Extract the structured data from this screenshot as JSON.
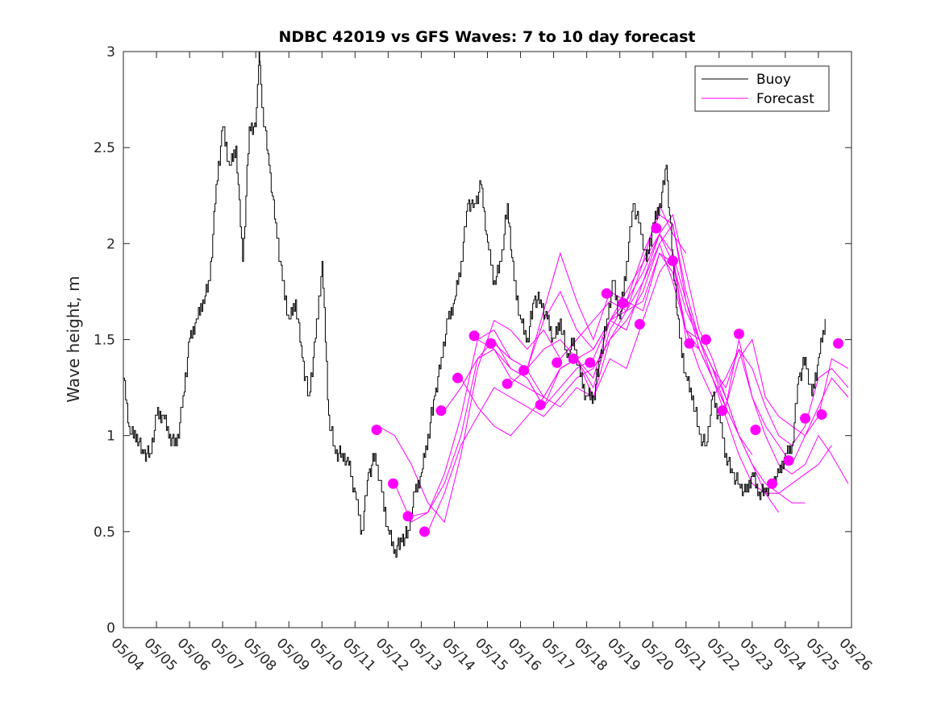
{
  "chart_data": {
    "type": "line",
    "title": "NDBC 42019 vs GFS Waves: 7 to 10 day forecast",
    "ylabel": "Wave height, m",
    "xlabel": "",
    "ylim": [
      0,
      3
    ],
    "yticks": [
      "0",
      "0.5",
      "1",
      "1.5",
      "2",
      "2.5",
      "3"
    ],
    "xlim": [
      4,
      26
    ],
    "xticks": [
      "05/04",
      "05/05",
      "05/06",
      "05/07",
      "05/08",
      "05/09",
      "05/10",
      "05/11",
      "05/12",
      "05/13",
      "05/14",
      "05/15",
      "05/16",
      "05/17",
      "05/18",
      "05/19",
      "05/20",
      "05/21",
      "05/22",
      "05/23",
      "05/24",
      "05/25",
      "05/26"
    ],
    "legend": {
      "position": "top-right",
      "entries": [
        "Buoy",
        "Forecast"
      ]
    },
    "colors": {
      "buoy": "#000000",
      "forecast": "#ff00ff"
    },
    "buoy": {
      "x": [
        4.0,
        4.2,
        4.4,
        4.6,
        4.8,
        5.0,
        5.2,
        5.4,
        5.6,
        5.8,
        6.0,
        6.2,
        6.4,
        6.6,
        6.8,
        7.0,
        7.2,
        7.4,
        7.6,
        7.8,
        8.0,
        8.1,
        8.2,
        8.4,
        8.6,
        8.8,
        9.0,
        9.2,
        9.4,
        9.6,
        9.8,
        10.0,
        10.2,
        10.4,
        10.6,
        10.8,
        11.0,
        11.2,
        11.4,
        11.6,
        11.8,
        12.0,
        12.2,
        12.4,
        12.6,
        12.8,
        13.0,
        13.2,
        13.4,
        13.6,
        13.8,
        14.0,
        14.2,
        14.4,
        14.6,
        14.8,
        15.0,
        15.2,
        15.4,
        15.6,
        15.8,
        16.0,
        16.2,
        16.4,
        16.6,
        16.8,
        17.0,
        17.2,
        17.4,
        17.6,
        17.8,
        18.0,
        18.2,
        18.4,
        18.6,
        18.8,
        19.0,
        19.2,
        19.4,
        19.6,
        19.8,
        20.0,
        20.2,
        20.4,
        20.6,
        20.8,
        21.0,
        21.2,
        21.4,
        21.6,
        21.8,
        22.0,
        22.2,
        22.4,
        22.6,
        22.8,
        23.0,
        23.2,
        23.4,
        23.6,
        23.8,
        24.0,
        24.2,
        24.4,
        24.6,
        24.8,
        25.0,
        25.2
      ],
      "y": [
        1.3,
        1.0,
        1.0,
        0.9,
        0.9,
        1.1,
        1.1,
        1.0,
        0.95,
        1.2,
        1.5,
        1.6,
        1.7,
        1.8,
        2.3,
        2.6,
        2.4,
        2.5,
        1.9,
        2.6,
        2.6,
        3.0,
        2.7,
        2.4,
        2.1,
        1.8,
        1.6,
        1.7,
        1.4,
        1.2,
        1.5,
        1.9,
        1.1,
        0.9,
        0.9,
        0.85,
        0.7,
        0.5,
        0.8,
        0.9,
        0.7,
        0.5,
        0.4,
        0.45,
        0.5,
        0.7,
        0.8,
        1.0,
        1.2,
        1.4,
        1.6,
        1.7,
        1.9,
        2.2,
        2.2,
        2.3,
        2.0,
        1.8,
        1.9,
        2.2,
        1.8,
        1.6,
        1.5,
        1.7,
        1.7,
        1.6,
        1.5,
        1.6,
        1.4,
        1.5,
        1.3,
        1.2,
        1.2,
        1.4,
        1.6,
        1.8,
        1.6,
        1.9,
        2.2,
        2.1,
        1.9,
        2.1,
        2.2,
        2.4,
        1.9,
        1.5,
        1.3,
        1.2,
        1.0,
        0.95,
        1.2,
        1.1,
        0.9,
        0.8,
        0.75,
        0.7,
        0.8,
        0.7,
        0.7,
        0.75,
        0.8,
        0.9,
        0.95,
        1.3,
        1.4,
        1.2,
        1.4,
        1.6
      ]
    },
    "forecast_points": {
      "x": [
        11.65,
        12.15,
        12.6,
        13.1,
        13.6,
        14.1,
        14.6,
        15.1,
        15.6,
        16.1,
        16.6,
        17.1,
        17.6,
        18.1,
        18.6,
        19.1,
        19.6,
        20.1,
        20.6,
        21.1,
        21.6,
        22.1,
        22.6,
        23.1,
        23.6,
        24.1,
        24.6,
        25.1,
        25.6
      ],
      "y": [
        1.03,
        0.75,
        0.58,
        0.5,
        1.13,
        1.3,
        1.52,
        1.48,
        1.27,
        1.34,
        1.16,
        1.38,
        1.4,
        1.38,
        1.74,
        1.69,
        1.58,
        2.08,
        1.91,
        1.48,
        1.5,
        1.13,
        1.53,
        1.03,
        0.75,
        0.87,
        1.09,
        1.11,
        1.48
      ]
    },
    "forecast_series": [
      {
        "x": [
          11.7,
          12.2,
          12.7,
          13.2,
          13.7,
          14.2,
          14.7,
          15.2,
          15.7,
          16.2,
          16.7,
          17.2,
          17.7,
          18.2,
          18.7,
          19.2,
          19.7,
          20.2,
          20.6,
          21.0
        ],
        "y": [
          1.05,
          1.0,
          0.85,
          0.65,
          0.55,
          0.9,
          1.35,
          1.6,
          1.55,
          1.45,
          1.55,
          1.4,
          1.5,
          1.6,
          1.7,
          1.65,
          1.9,
          2.2,
          2.05,
          1.95
        ]
      },
      {
        "x": [
          12.2,
          12.7,
          13.2,
          13.7,
          14.2,
          14.7,
          15.2,
          15.7,
          16.2,
          16.7,
          17.2,
          17.7,
          18.2,
          18.7,
          19.2,
          19.7,
          20.2,
          20.6,
          21.0,
          21.4,
          21.8,
          22.2
        ],
        "y": [
          0.75,
          0.55,
          0.6,
          0.8,
          1.1,
          1.5,
          1.45,
          1.35,
          1.3,
          1.15,
          1.25,
          1.35,
          1.4,
          1.6,
          1.75,
          1.9,
          2.05,
          1.9,
          1.65,
          1.5,
          1.35,
          1.15
        ]
      },
      {
        "x": [
          12.7,
          13.2,
          13.7,
          14.2,
          14.7,
          15.2,
          15.7,
          16.2,
          16.7,
          17.2,
          17.7,
          18.2,
          18.7,
          19.2,
          19.7,
          20.2,
          20.6,
          21.0,
          21.4,
          21.8,
          22.2,
          22.6,
          23.0
        ],
        "y": [
          0.58,
          0.6,
          0.75,
          1.0,
          1.4,
          1.45,
          1.3,
          1.25,
          1.2,
          1.35,
          1.4,
          1.45,
          1.6,
          1.7,
          1.95,
          2.15,
          2.1,
          1.7,
          1.5,
          1.35,
          1.2,
          1.0,
          0.9
        ]
      },
      {
        "x": [
          13.2,
          13.7,
          14.2,
          14.7,
          15.2,
          15.7,
          16.2,
          16.7,
          17.2,
          17.7,
          18.2,
          18.7,
          19.2,
          19.7,
          20.2,
          20.6,
          21.0,
          21.4,
          21.8,
          22.2,
          22.6,
          23.0,
          23.4,
          23.8
        ],
        "y": [
          0.5,
          0.7,
          0.95,
          1.1,
          1.25,
          1.2,
          1.15,
          1.1,
          1.2,
          1.3,
          1.35,
          1.5,
          1.6,
          1.75,
          2.0,
          2.1,
          1.75,
          1.5,
          1.3,
          1.1,
          0.9,
          0.75,
          0.7,
          0.6
        ]
      },
      {
        "x": [
          13.7,
          14.2,
          14.7,
          15.2,
          15.7,
          16.2,
          16.7,
          17.2,
          17.7,
          18.2,
          18.7,
          19.2,
          19.7,
          20.2,
          20.6,
          21.0,
          21.4,
          21.8,
          22.2,
          22.6,
          23.0,
          23.4,
          23.8,
          24.2,
          24.6
        ],
        "y": [
          1.13,
          1.25,
          1.4,
          1.5,
          1.35,
          1.3,
          1.15,
          1.35,
          1.4,
          1.2,
          1.5,
          1.65,
          1.8,
          2.05,
          2.15,
          1.85,
          1.55,
          1.4,
          1.2,
          1.0,
          0.85,
          0.7,
          0.7,
          0.65,
          0.65
        ]
      },
      {
        "x": [
          14.2,
          14.7,
          15.2,
          15.7,
          16.2,
          16.7,
          17.2,
          17.7,
          18.2,
          18.7,
          19.2,
          19.7,
          20.2,
          20.6,
          21.0,
          21.4,
          21.8,
          22.2,
          22.6,
          23.0,
          23.4,
          23.8,
          24.2,
          24.6,
          25.0,
          25.4
        ],
        "y": [
          1.3,
          1.15,
          1.05,
          1.0,
          1.1,
          1.2,
          1.35,
          1.4,
          1.25,
          1.55,
          1.7,
          1.85,
          2.05,
          1.95,
          1.7,
          1.45,
          1.3,
          1.15,
          1.0,
          0.85,
          0.75,
          0.7,
          0.75,
          0.8,
          0.85,
          0.95
        ]
      },
      {
        "x": [
          14.7,
          15.2,
          15.7,
          16.2,
          16.7,
          17.2,
          17.7,
          18.2,
          18.7,
          19.2,
          19.7,
          20.2,
          20.6,
          21.0,
          21.4,
          21.8,
          22.2,
          22.6,
          23.0,
          23.4,
          23.8,
          24.2,
          24.6,
          25.0,
          25.4,
          25.9
        ],
        "y": [
          1.5,
          1.55,
          1.4,
          1.35,
          1.45,
          1.5,
          1.4,
          1.3,
          1.6,
          1.65,
          1.7,
          1.95,
          1.85,
          1.55,
          1.35,
          1.2,
          1.3,
          1.45,
          1.2,
          1.0,
          0.85,
          0.8,
          0.85,
          1.0,
          0.9,
          0.75
        ]
      },
      {
        "x": [
          15.2,
          15.7,
          16.2,
          16.7,
          17.2,
          17.7,
          18.2,
          18.7,
          19.2,
          19.7,
          20.2,
          20.6,
          21.0,
          21.4,
          21.8,
          22.2,
          22.6,
          23.0,
          23.4,
          23.8,
          24.2,
          24.6,
          25.0,
          25.4,
          25.9
        ],
        "y": [
          1.48,
          1.4,
          1.35,
          1.65,
          1.95,
          1.7,
          1.5,
          1.75,
          1.7,
          1.65,
          1.95,
          1.9,
          1.55,
          1.45,
          1.3,
          1.15,
          1.5,
          1.2,
          1.05,
          0.95,
          0.85,
          1.0,
          1.15,
          1.3,
          1.2
        ]
      },
      {
        "x": [
          15.7,
          16.2,
          16.7,
          17.2,
          17.7,
          18.2,
          18.7,
          19.2,
          19.7,
          20.2,
          20.6,
          21.0,
          21.4,
          21.8,
          22.2,
          22.6,
          23.0,
          23.4,
          23.8,
          24.2,
          24.6,
          25.0,
          25.4,
          25.9
        ],
        "y": [
          1.27,
          1.35,
          1.6,
          1.75,
          1.55,
          1.45,
          1.6,
          1.55,
          1.8,
          2.0,
          1.8,
          1.55,
          1.5,
          1.35,
          1.25,
          1.45,
          1.35,
          1.15,
          1.0,
          0.95,
          1.05,
          1.3,
          1.35,
          1.25
        ]
      },
      {
        "x": [
          16.2,
          16.7,
          17.2,
          17.7,
          18.2,
          18.7,
          19.2,
          19.7,
          20.2,
          20.6,
          21.0,
          21.4,
          21.8,
          22.2,
          22.6,
          23.0,
          23.4,
          23.8,
          24.2,
          24.6,
          25.0,
          25.4,
          25.9
        ],
        "y": [
          1.34,
          1.2,
          1.15,
          1.25,
          1.2,
          1.4,
          1.35,
          1.6,
          1.85,
          1.95,
          1.5,
          1.45,
          1.3,
          1.15,
          1.4,
          1.5,
          1.2,
          1.1,
          1.05,
          1.0,
          1.1,
          1.4,
          1.35
        ]
      }
    ]
  }
}
